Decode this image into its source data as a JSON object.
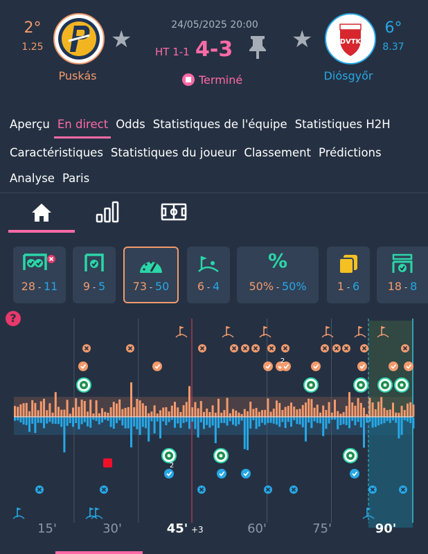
{
  "match": {
    "datetime": "24/05/2025 20:00",
    "halftime": "HT 1-1",
    "score": "4-3",
    "status": "Terminé"
  },
  "home": {
    "name": "Puskás",
    "rank": "2°",
    "odds": "1.25",
    "color": "#f49a6d"
  },
  "away": {
    "name": "Diósgyőr",
    "rank": "6°",
    "odds": "8.37",
    "color": "#27a7e6"
  },
  "nav": {
    "row1": [
      "Aperçu",
      "En direct",
      "Odds",
      "Statistiques de l'équipe",
      "Statistiques H2H"
    ],
    "row2": [
      "Caractéristiques",
      "Statistiques du joueur",
      "Classement",
      "Prédictions"
    ],
    "row3": [
      "Analyse",
      "Paris"
    ],
    "active": "En direct"
  },
  "subtabs": [
    "home-icon",
    "stats-bars-icon",
    "pitch-icon"
  ],
  "stats": [
    {
      "icon": "shots-icon",
      "home": "28",
      "away": "11"
    },
    {
      "icon": "shots-on-target-icon",
      "home": "9",
      "away": "5"
    },
    {
      "icon": "attacks-gauge-icon",
      "home": "73",
      "away": "50"
    },
    {
      "icon": "corner-icon",
      "home": "6",
      "away": "4"
    },
    {
      "icon": "possession-icon",
      "home": "50%",
      "away": "50%"
    },
    {
      "icon": "cards-icon",
      "home": "1",
      "away": "6"
    },
    {
      "icon": "saves-icon",
      "home": "18",
      "away": "8"
    }
  ],
  "axis": {
    "ticks": [
      "15'",
      "30'",
      "45'",
      "60'",
      "75'",
      "90'"
    ],
    "added_time": "+3"
  },
  "timeline": {
    "home_goal_minutes": [
      17,
      71,
      86,
      90
    ],
    "away_goal_minutes": [
      37,
      49,
      81
    ],
    "away_red_card_minute": 23,
    "goal_count_label": "2"
  },
  "help_icon": "help-icon"
}
